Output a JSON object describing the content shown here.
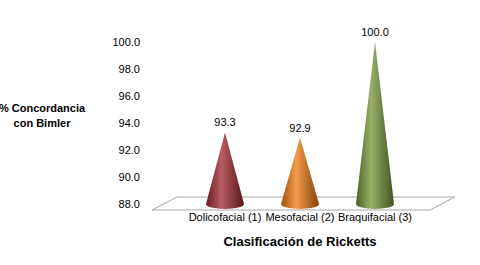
{
  "chart_data": {
    "type": "bar",
    "x_label": "Clasificación de Ricketts",
    "y_label": "% Concordancia con Bimler",
    "categories": [
      "Dolicofacial (1)",
      "Mesofacial (2)",
      "Braquifacial (3)"
    ],
    "values": [
      93.3,
      92.9,
      100.0
    ],
    "value_labels": [
      "93.3",
      "92.9",
      "100.0"
    ],
    "colors": [
      "#a0282e",
      "#f07a10",
      "#76963a"
    ],
    "ylim": [
      88,
      100
    ],
    "yticks": [
      {
        "value": 88,
        "label": "88.0"
      },
      {
        "value": 90,
        "label": "90.0"
      },
      {
        "value": 92,
        "label": "92.0"
      },
      {
        "value": 94,
        "label": "94.0"
      },
      {
        "value": 96,
        "label": "96.0"
      },
      {
        "value": 98,
        "label": "98.0"
      },
      {
        "value": 100,
        "label": "100.0"
      }
    ],
    "data_labels": true,
    "grid": false
  }
}
